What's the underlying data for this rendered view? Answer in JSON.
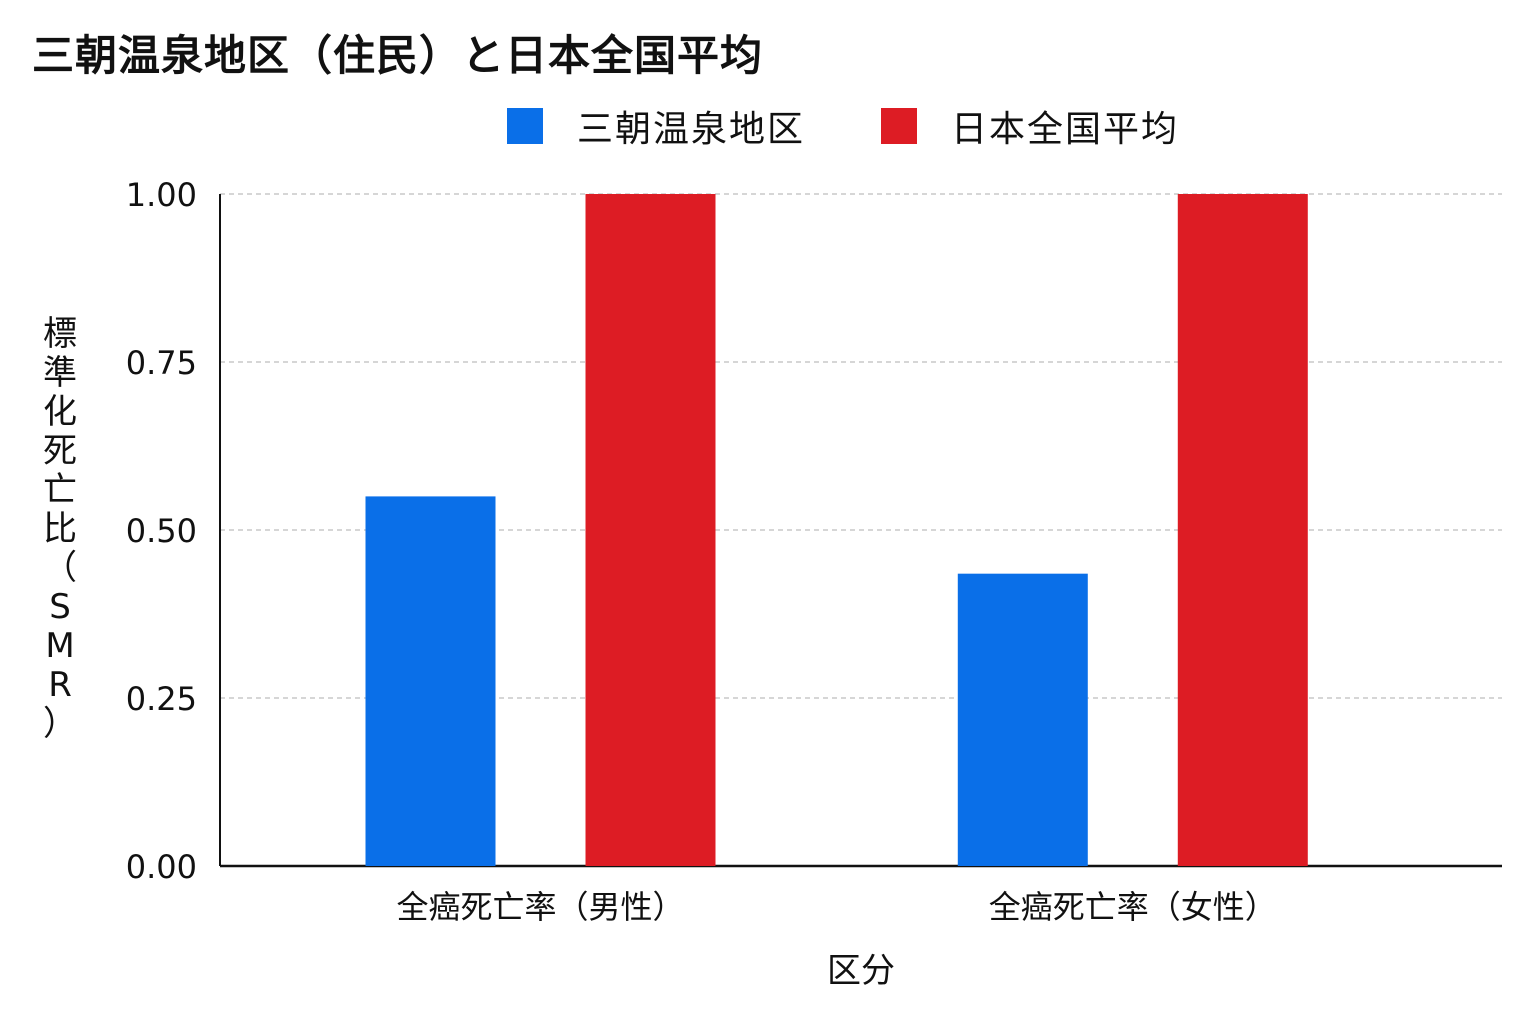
{
  "chart_data": {
    "type": "bar",
    "title": "三朝温泉地区（住民）と日本全国平均",
    "xlabel": "区分",
    "ylabel": "標準化死亡比（SMR）",
    "categories": [
      "全癌死亡率（男性）",
      "全癌死亡率（女性）"
    ],
    "series": [
      {
        "name": "三朝温泉地区",
        "values": [
          0.55,
          0.435
        ],
        "color": "#0a6fe8"
      },
      {
        "name": "日本全国平均",
        "values": [
          1.0,
          1.0
        ],
        "color": "#dd1c24"
      }
    ],
    "ylim": [
      0,
      1.0
    ],
    "yticks": [
      "0.00",
      "0.25",
      "0.50",
      "0.75",
      "1.00"
    ],
    "grid": true,
    "legend_position": "top-center"
  }
}
